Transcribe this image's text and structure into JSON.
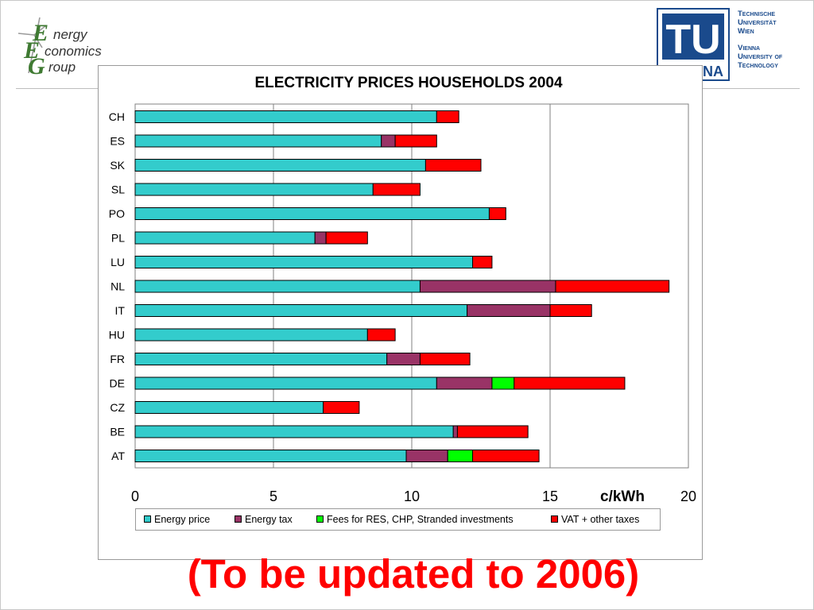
{
  "logos": {
    "left_org": [
      "nergy",
      "conomics",
      "roup"
    ],
    "left_initials": [
      "E",
      "E",
      "G"
    ],
    "right_logo_letters": "TU",
    "right_logo_sub": "NA",
    "right_org_lines": [
      "Technische",
      "Universität",
      "Wien",
      "Vienna",
      "University of",
      "Technology"
    ]
  },
  "footer_note": "(To be updated to 2006)",
  "unit_label": "c/kWh",
  "colors": {
    "energy_price": "#33cccc",
    "energy_tax": "#993366",
    "fees": "#00ff00",
    "vat": "#ff0000",
    "logo_green": "#3f7a32",
    "logo_blue": "#1a4a8c",
    "footer": "#ff0000"
  },
  "chart_data": {
    "type": "bar",
    "orientation": "horizontal",
    "stacked": true,
    "title": "ELECTRICITY PRICES HOUSEHOLDS 2004",
    "xlabel": "c/kWh",
    "ylabel": "",
    "xlim": [
      0,
      20
    ],
    "xticks": [
      0,
      5,
      10,
      15,
      20
    ],
    "grid": "vertical lines at 5, 10, 15",
    "legend_position": "bottom",
    "categories": [
      "CH",
      "ES",
      "SK",
      "SL",
      "PO",
      "PL",
      "LU",
      "NL",
      "IT",
      "HU",
      "FR",
      "DE",
      "CZ",
      "BE",
      "AT"
    ],
    "series": [
      {
        "name": "Energy price",
        "color": "#33cccc",
        "values": [
          10.9,
          8.9,
          10.5,
          8.6,
          12.8,
          6.5,
          12.2,
          10.3,
          12.0,
          8.4,
          9.1,
          10.9,
          6.8,
          11.5,
          9.8
        ]
      },
      {
        "name": "Energy tax",
        "color": "#993366",
        "values": [
          0,
          0.5,
          0,
          0,
          0,
          0.4,
          0,
          4.9,
          3.0,
          0,
          1.2,
          2.0,
          0,
          0.15,
          1.5
        ]
      },
      {
        "name": "Fees for RES, CHP, Stranded investments",
        "color": "#00ff00",
        "values": [
          0,
          0,
          0,
          0,
          0,
          0,
          0,
          0,
          0,
          0,
          0,
          0.8,
          0,
          0,
          0.9
        ]
      },
      {
        "name": "VAT + other taxes",
        "color": "#ff0000",
        "values": [
          0.8,
          1.5,
          2.0,
          1.7,
          0.6,
          1.5,
          0.7,
          4.1,
          1.5,
          1.0,
          1.8,
          4.0,
          1.3,
          2.55,
          2.4
        ]
      }
    ]
  }
}
